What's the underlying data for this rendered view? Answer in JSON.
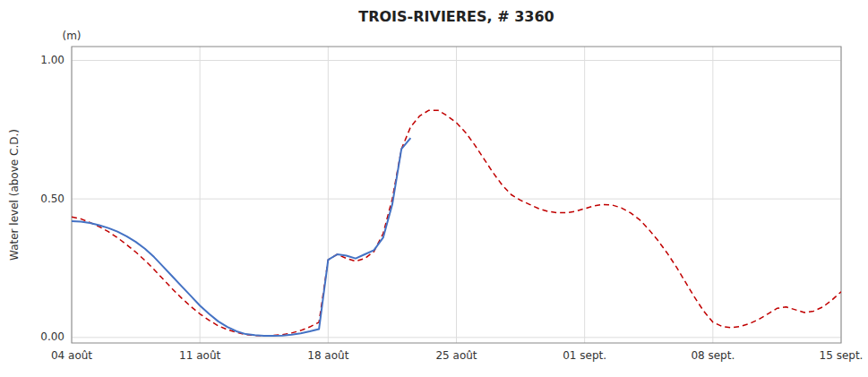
{
  "chart_data": {
    "type": "line",
    "title": "TROIS-RIVIERES, # 3360",
    "y_label": "Water level (above C.D.)",
    "annotations": [
      "(m)"
    ],
    "xlim": [
      0,
      42
    ],
    "xticks": [
      {
        "value": 0,
        "label": "04 août"
      },
      {
        "value": 7,
        "label": "11 août"
      },
      {
        "value": 14,
        "label": "18 août"
      },
      {
        "value": 21,
        "label": "25 août"
      },
      {
        "value": 28,
        "label": "01 sept."
      },
      {
        "value": 35,
        "label": "08 sept."
      },
      {
        "value": 42,
        "label": "15 sept."
      }
    ],
    "ylim": [
      -0.02,
      1.05
    ],
    "yticks": [
      {
        "value": 0.0,
        "label": "0.00"
      },
      {
        "value": 0.5,
        "label": "0.50"
      },
      {
        "value": 1.0,
        "label": "1.00"
      }
    ],
    "grid": true,
    "series": [
      {
        "color": "#C00000",
        "line_style": "dashed",
        "x": [
          0,
          0.5,
          1,
          1.5,
          2,
          2.5,
          3,
          3.5,
          4,
          4.5,
          5,
          5.5,
          6,
          6.5,
          7,
          7.5,
          8,
          8.5,
          9,
          9.5,
          10,
          10.5,
          11,
          11.5,
          12,
          12.5,
          13,
          13.5,
          14,
          14.5,
          15,
          15.5,
          16,
          16.5,
          17,
          17.5,
          18,
          18.5,
          19,
          19.5,
          20,
          20.5,
          21,
          21.5,
          22,
          22.5,
          23,
          23.5,
          24,
          24.5,
          25,
          25.5,
          26,
          26.5,
          27,
          27.5,
          28,
          28.5,
          29,
          29.5,
          30,
          30.5,
          31,
          31.5,
          32,
          32.5,
          33,
          33.5,
          34,
          34.5,
          35,
          35.5,
          36,
          36.5,
          37,
          37.5,
          38,
          38.5,
          39,
          39.5,
          40,
          40.5,
          41,
          41.5,
          42
        ],
        "values": [
          0.435,
          0.428,
          0.415,
          0.4,
          0.382,
          0.36,
          0.335,
          0.308,
          0.278,
          0.245,
          0.21,
          0.175,
          0.142,
          0.112,
          0.085,
          0.062,
          0.042,
          0.028,
          0.018,
          0.01,
          0.007,
          0.006,
          0.007,
          0.01,
          0.016,
          0.025,
          0.038,
          0.055,
          0.28,
          0.3,
          0.285,
          0.275,
          0.285,
          0.31,
          0.375,
          0.5,
          0.68,
          0.76,
          0.8,
          0.82,
          0.82,
          0.8,
          0.775,
          0.74,
          0.695,
          0.645,
          0.595,
          0.55,
          0.515,
          0.495,
          0.48,
          0.465,
          0.455,
          0.45,
          0.45,
          0.455,
          0.465,
          0.475,
          0.48,
          0.478,
          0.468,
          0.45,
          0.425,
          0.39,
          0.35,
          0.305,
          0.255,
          0.2,
          0.145,
          0.095,
          0.055,
          0.04,
          0.035,
          0.04,
          0.05,
          0.065,
          0.085,
          0.105,
          0.11,
          0.1,
          0.09,
          0.095,
          0.11,
          0.135,
          0.165
        ]
      },
      {
        "color": "#4472C4",
        "line_style": "solid",
        "x": [
          0,
          0.5,
          1,
          1.5,
          2,
          2.5,
          3,
          3.5,
          4,
          4.5,
          5,
          5.5,
          6,
          6.5,
          7,
          7.5,
          8,
          8.5,
          9,
          9.5,
          10,
          10.5,
          11,
          11.5,
          12,
          12.5,
          13,
          13.5,
          14,
          14.5,
          15,
          15.5,
          16,
          16.5,
          17,
          17.5,
          18,
          18.5
        ],
        "values": [
          0.42,
          0.418,
          0.413,
          0.405,
          0.395,
          0.382,
          0.365,
          0.345,
          0.32,
          0.29,
          0.255,
          0.22,
          0.185,
          0.15,
          0.115,
          0.085,
          0.058,
          0.038,
          0.022,
          0.012,
          0.008,
          0.006,
          0.006,
          0.007,
          0.01,
          0.015,
          0.022,
          0.03,
          0.28,
          0.3,
          0.295,
          0.285,
          0.3,
          0.315,
          0.36,
          0.48,
          0.68,
          0.72
        ]
      }
    ]
  }
}
